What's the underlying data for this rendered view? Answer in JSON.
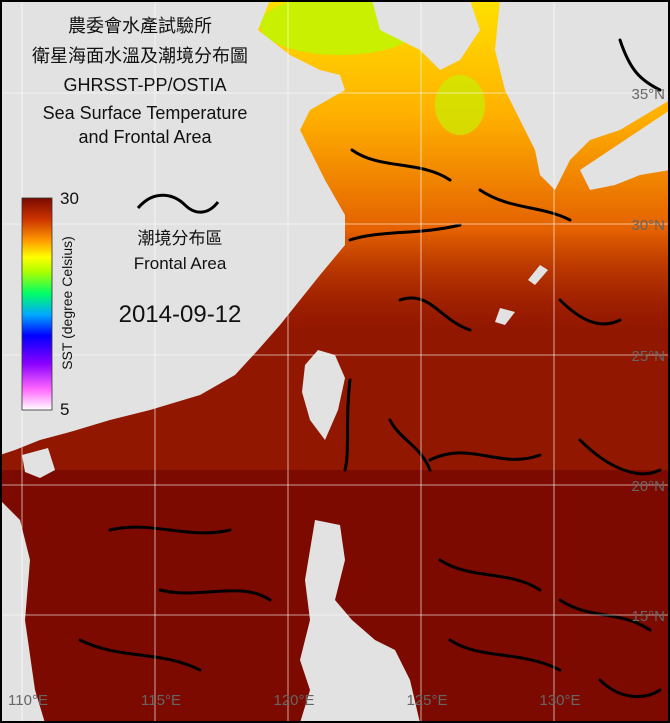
{
  "title": [
    "農委會水產試驗所",
    "衛星海面水溫及潮境分布圖",
    "GHRSST-PP/OSTIA",
    "Sea Surface Temperature",
    "and Frontal Area"
  ],
  "colorbar": {
    "label": "SST (degree Celsius)",
    "max": "30",
    "min": "5"
  },
  "legend": {
    "label_zh": "潮境分布區",
    "label_en": "Frontal Area"
  },
  "date": "2014-09-12",
  "grid": {
    "lat_labels": [
      "35°N",
      "30°N",
      "25°N",
      "20°N",
      "15°N"
    ],
    "lon_labels": [
      "110°E",
      "115°E",
      "120°E",
      "125°E",
      "130°E"
    ]
  }
}
